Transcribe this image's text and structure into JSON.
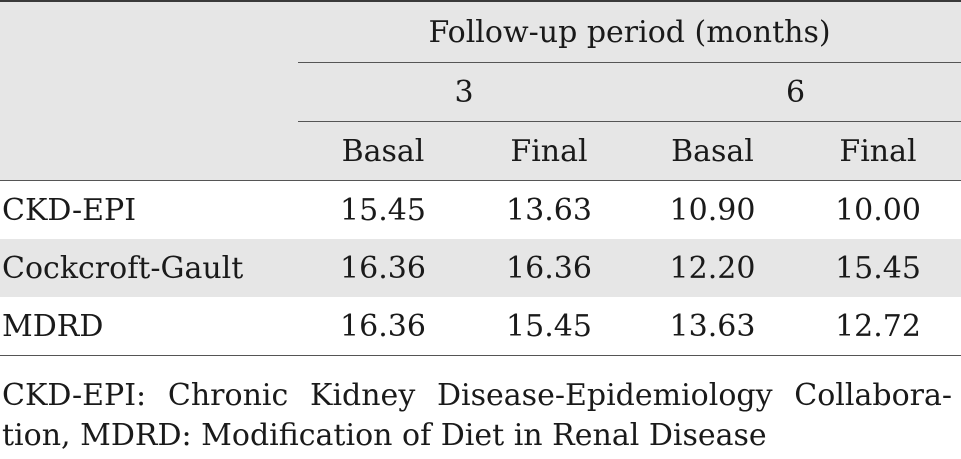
{
  "table": {
    "header": {
      "group_label": "Follow-up period (months)",
      "periods": [
        "3",
        "6"
      ],
      "subcolumns": [
        "Basal",
        "Final",
        "Basal",
        "Final"
      ]
    },
    "rows": [
      {
        "label": "CKD-EPI",
        "values": [
          "15.45",
          "13.63",
          "10.90",
          "10.00"
        ]
      },
      {
        "label": "Cockcroft-Gault",
        "values": [
          "16.36",
          "16.36",
          "12.20",
          "15.45"
        ]
      },
      {
        "label": "MDRD",
        "values": [
          "16.36",
          "15.45",
          "13.63",
          "12.72"
        ]
      }
    ]
  },
  "footnote": {
    "line1": "CKD-EPI: Chronic Kidney Disease-Epidemiology Collabora-",
    "line2": "tion, MDRD: Modification of Diet in Renal Disease"
  }
}
